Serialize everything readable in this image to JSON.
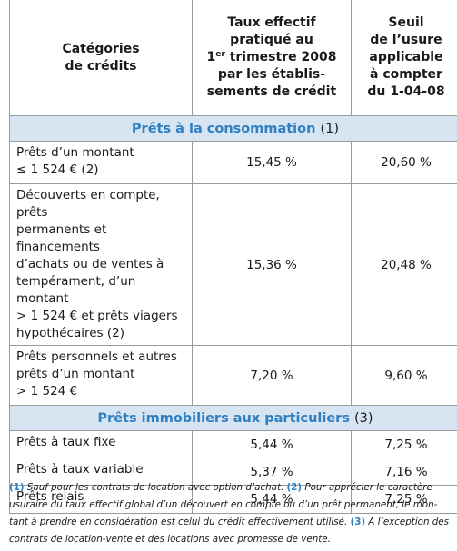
{
  "table": {
    "header": {
      "categories": [
        "Catégories",
        "de crédits"
      ],
      "rate_lines": [
        "Taux effectif",
        "pratiqué au"
      ],
      "rate_quarter_prefix": "1",
      "rate_quarter_sup": "er",
      "rate_quarter_suffix": " trimestre 2008",
      "rate_tail_lines": [
        "par les établis-",
        "sements de crédit"
      ],
      "threshold_lines": [
        "Seuil",
        "de l’usure",
        "applicable",
        "à compter",
        "du 1-04-08"
      ]
    },
    "sections": [
      {
        "title": "Prêts à la consommation",
        "note": "(1)",
        "rows": [
          {
            "category_lines": [
              "Prêts d’un montant",
              "≤ 1 524 € (2)"
            ],
            "rate": "15,45 %",
            "threshold": "20,60 %"
          },
          {
            "category_lines": [
              "Découverts en compte, prêts",
              "permanents et financements",
              "d’achats ou de ventes à",
              "tempérament, d’un montant",
              "> 1 524 € et prêts viagers",
              "hypothécaires (2)"
            ],
            "rate": "15,36 %",
            "threshold": "20,48 %"
          },
          {
            "category_lines": [
              "Prêts personnels et autres",
              "prêts d’un montant",
              "> 1 524 €"
            ],
            "rate": "7,20 %",
            "threshold": "9,60 %"
          }
        ]
      },
      {
        "title": "Prêts immobiliers aux particuliers",
        "note": "(3)",
        "rows": [
          {
            "category_lines": [
              "Prêts à taux fixe"
            ],
            "rate": "5,44 %",
            "threshold": "7,25 %"
          },
          {
            "category_lines": [
              "Prêts à taux variable"
            ],
            "rate": "5,37 %",
            "threshold": "7,16 %"
          },
          {
            "category_lines": [
              "Prêts relais"
            ],
            "rate": "5,44 %",
            "threshold": "7,25 %"
          }
        ]
      }
    ]
  },
  "footnote": {
    "line1": {
      "num1": "(1)",
      "text1": " Sauf pour les contrats de location avec option d’achat. ",
      "num2": "(2)",
      "text2": " Pour apprécier le caractère"
    },
    "line2": "usuraire du taux effectif global d’un découvert en compte ou d’un prêt permanent, le mon-",
    "line3": {
      "text1": "tant à prendre en considération est celui du crédit effectivement utilisé. ",
      "num3": "(3)",
      "text2": " A l’exception des"
    },
    "line4": "contrats de location-vente et des locations avec promesse de vente."
  },
  "colors": {
    "section_text": "#2f7fc1",
    "section_bg": "#d7e5f3",
    "border": "#9a9a9a"
  }
}
